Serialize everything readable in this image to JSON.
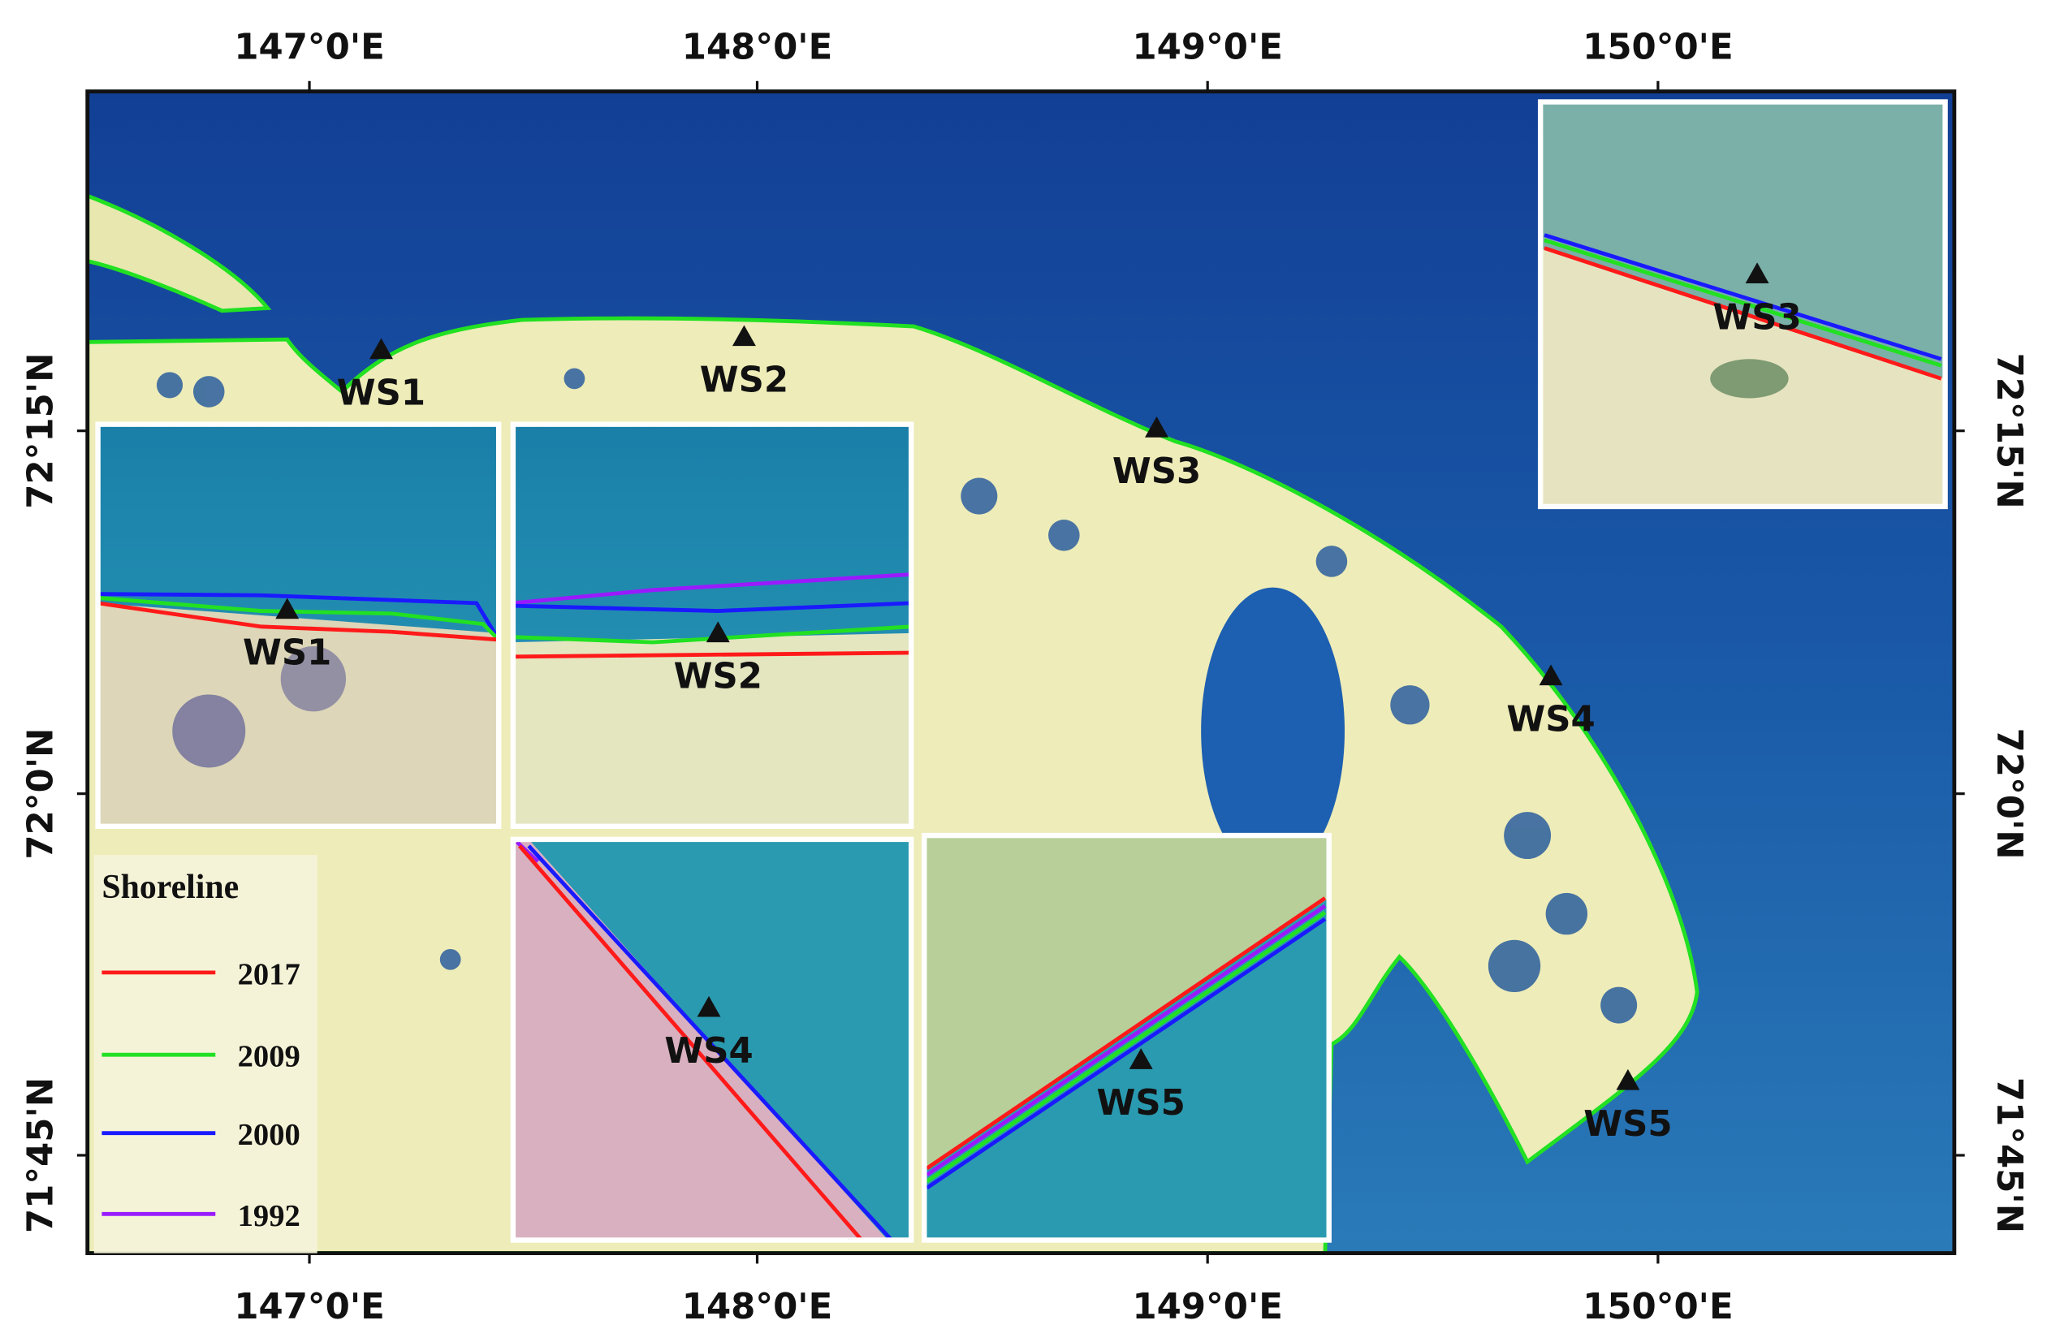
{
  "map": {
    "lon_labels": [
      "147°0'E",
      "148°0'E",
      "149°0'E",
      "150°0'E"
    ],
    "lat_labels": [
      "72°15'N",
      "72°0'N",
      "71°45'N"
    ],
    "stations": [
      "WS1",
      "WS2",
      "WS3",
      "WS4",
      "WS5"
    ],
    "insets": [
      "WS1",
      "WS2",
      "WS3",
      "WS4",
      "WS5"
    ],
    "legend": {
      "title": "Shoreline",
      "entries": [
        {
          "year": "2017",
          "color": "#ff1a1a"
        },
        {
          "year": "2009",
          "color": "#22e022"
        },
        {
          "year": "2000",
          "color": "#1a1aff"
        },
        {
          "year": "1992",
          "color": "#9a1aff"
        }
      ]
    }
  }
}
